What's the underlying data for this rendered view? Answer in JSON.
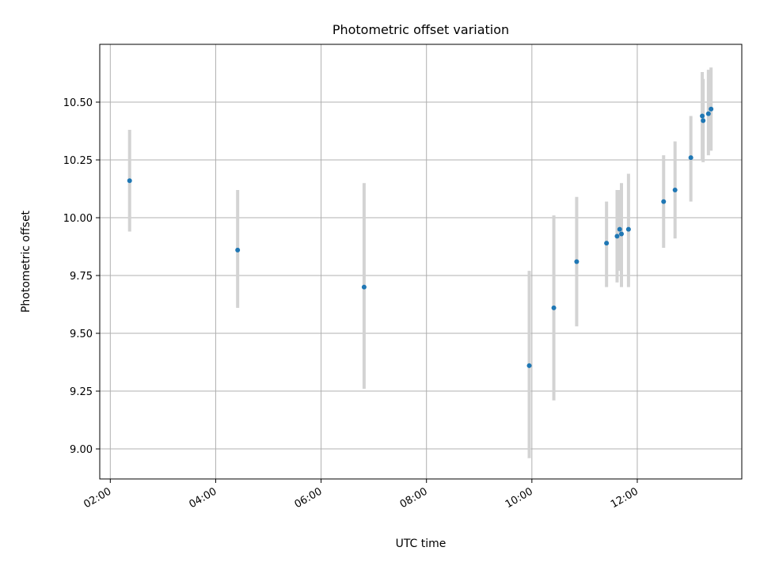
{
  "chart_data": {
    "type": "scatter",
    "title": "Photometric offset variation",
    "xlabel": "UTC time",
    "ylabel": "Photometric offset",
    "x_axis_type": "time",
    "xlim": [
      "01:48",
      "13:59"
    ],
    "ylim": [
      8.87,
      10.75
    ],
    "grid": true,
    "x_ticks": [
      "02:00",
      "04:00",
      "06:00",
      "08:00",
      "10:00",
      "12:00"
    ],
    "y_ticks": [
      "9.00",
      "9.25",
      "9.50",
      "9.75",
      "10.00",
      "10.25",
      "10.50"
    ],
    "colors": {
      "point": "#1f77b4",
      "errorbar": "#d3d3d3",
      "grid": "#b0b0b0"
    },
    "points": [
      {
        "x": "02:22",
        "y": 10.16,
        "ylo": 9.94,
        "yhi": 10.38
      },
      {
        "x": "04:25",
        "y": 9.86,
        "ylo": 9.61,
        "yhi": 10.12
      },
      {
        "x": "06:49",
        "y": 9.7,
        "ylo": 9.26,
        "yhi": 10.15
      },
      {
        "x": "09:57",
        "y": 9.36,
        "ylo": 8.96,
        "yhi": 9.77
      },
      {
        "x": "10:25",
        "y": 9.61,
        "ylo": 9.21,
        "yhi": 10.01
      },
      {
        "x": "10:51",
        "y": 9.81,
        "ylo": 9.53,
        "yhi": 10.09
      },
      {
        "x": "11:25",
        "y": 9.89,
        "ylo": 9.7,
        "yhi": 10.07
      },
      {
        "x": "11:37",
        "y": 9.92,
        "ylo": 9.72,
        "yhi": 10.12
      },
      {
        "x": "11:40",
        "y": 9.95,
        "ylo": 9.77,
        "yhi": 10.12
      },
      {
        "x": "11:42",
        "y": 9.93,
        "ylo": 9.7,
        "yhi": 10.15
      },
      {
        "x": "11:50",
        "y": 9.95,
        "ylo": 9.7,
        "yhi": 10.19
      },
      {
        "x": "12:30",
        "y": 10.07,
        "ylo": 9.87,
        "yhi": 10.27
      },
      {
        "x": "12:43",
        "y": 10.12,
        "ylo": 9.91,
        "yhi": 10.33
      },
      {
        "x": "13:01",
        "y": 10.26,
        "ylo": 10.07,
        "yhi": 10.44
      },
      {
        "x": "13:14",
        "y": 10.44,
        "ylo": 10.25,
        "yhi": 10.63
      },
      {
        "x": "13:15",
        "y": 10.42,
        "ylo": 10.24,
        "yhi": 10.6
      },
      {
        "x": "13:21",
        "y": 10.45,
        "ylo": 10.27,
        "yhi": 10.64
      },
      {
        "x": "13:24",
        "y": 10.47,
        "ylo": 10.29,
        "yhi": 10.65
      }
    ]
  }
}
